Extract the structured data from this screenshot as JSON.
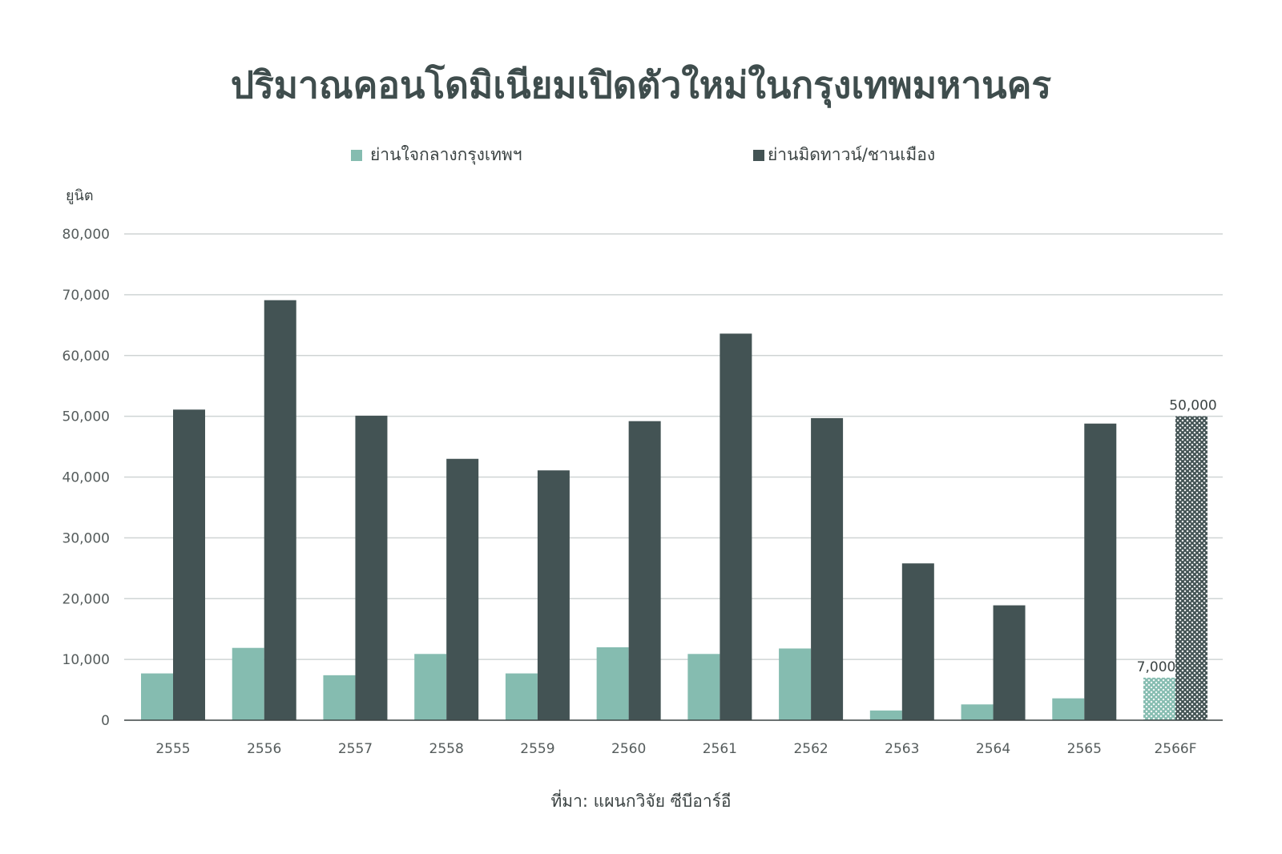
{
  "chart_data": {
    "type": "bar",
    "title": "ปริมาณคอนโดมิเนียมเปิดตัวใหม่ในกรุงเทพมหานคร",
    "ylabel": "ยูนิต",
    "source": "ที่มา: แผนกวิจัย ซีบีอาร์อี",
    "ylim": [
      0,
      80000
    ],
    "yticks": [
      "0",
      "10,000",
      "20,000",
      "30,000",
      "40,000",
      "50,000",
      "60,000",
      "70,000",
      "80,000"
    ],
    "ytick_values": [
      0,
      10000,
      20000,
      30000,
      40000,
      50000,
      60000,
      70000,
      80000
    ],
    "categories": [
      "2555",
      "2556",
      "2557",
      "2558",
      "2559",
      "2560",
      "2561",
      "2562",
      "2563",
      "2564",
      "2565",
      "2566F"
    ],
    "grid": true,
    "legend_position": "top",
    "forecast_category": "2566F",
    "forecast_style": "hatched",
    "series": [
      {
        "name": "ย่านใจกลางกรุงเทพฯ",
        "color": "#85bcb0",
        "values": [
          7700,
          11900,
          7400,
          10900,
          7700,
          12000,
          10900,
          11800,
          1600,
          2600,
          3600,
          7000
        ],
        "value_labels": [
          null,
          null,
          null,
          null,
          null,
          null,
          null,
          null,
          null,
          null,
          null,
          "7,000"
        ]
      },
      {
        "name": "ย่านมิดทาวน์/ชานเมือง",
        "color": "#435354",
        "values": [
          51100,
          69100,
          50100,
          43000,
          41100,
          49200,
          63600,
          49700,
          25800,
          18900,
          48800,
          50000
        ],
        "value_labels": [
          null,
          null,
          null,
          null,
          null,
          null,
          null,
          null,
          null,
          null,
          null,
          "50,000"
        ]
      }
    ]
  }
}
